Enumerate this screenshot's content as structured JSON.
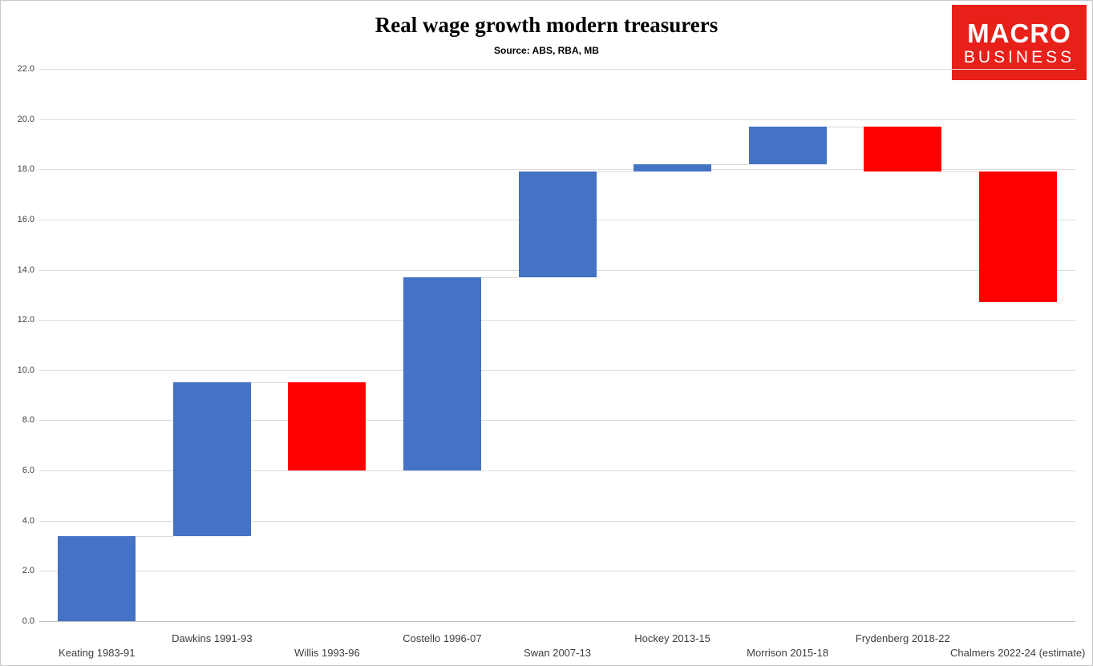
{
  "header": {
    "title": "Real wage growth modern treasurers",
    "subtitle": "Source: ABS, RBA, MB"
  },
  "logo": {
    "line1": "MACRO",
    "line2": "BUSINESS",
    "background": "#e8201a"
  },
  "chart_data": {
    "type": "waterfall",
    "title": "Real wage growth modern treasurers",
    "subtitle": "Source: ABS, RBA, MB",
    "categories": [
      "Keating 1983-91",
      "Dawkins 1991-93",
      "Willis 1993-96",
      "Costello 1996-07",
      "Swan 2007-13",
      "Hockey 2013-15",
      "Morrison 2015-18",
      "Frydenberg 2018-22",
      "Chalmers 2022-24 (estimate)"
    ],
    "segments": [
      {
        "label": "Keating 1983-91",
        "start": 0.0,
        "end": 3.4,
        "direction": "increase"
      },
      {
        "label": "Dawkins 1991-93",
        "start": 3.4,
        "end": 9.5,
        "direction": "increase"
      },
      {
        "label": "Willis 1993-96",
        "start": 9.5,
        "end": 6.0,
        "direction": "decrease"
      },
      {
        "label": "Costello 1996-07",
        "start": 6.0,
        "end": 13.7,
        "direction": "increase"
      },
      {
        "label": "Swan 2007-13",
        "start": 13.7,
        "end": 17.9,
        "direction": "increase"
      },
      {
        "label": "Hockey 2013-15",
        "start": 17.9,
        "end": 18.2,
        "direction": "increase"
      },
      {
        "label": "Morrison 2015-18",
        "start": 18.2,
        "end": 19.7,
        "direction": "increase"
      },
      {
        "label": "Frydenberg 2018-22",
        "start": 19.7,
        "end": 17.9,
        "direction": "decrease"
      },
      {
        "label": "Chalmers 2022-24 (estimate)",
        "start": 17.9,
        "end": 12.7,
        "direction": "decrease"
      }
    ],
    "ylim": [
      0,
      22
    ],
    "yticks": [
      0,
      2,
      4,
      6,
      8,
      10,
      12,
      14,
      16,
      18,
      20,
      22
    ],
    "ytick_format": "one_decimal",
    "colors": {
      "increase": "#4472c4",
      "decrease": "#ff0000"
    },
    "grid": true,
    "legend": "none",
    "x_label_layout": "staggered-two-rows"
  }
}
